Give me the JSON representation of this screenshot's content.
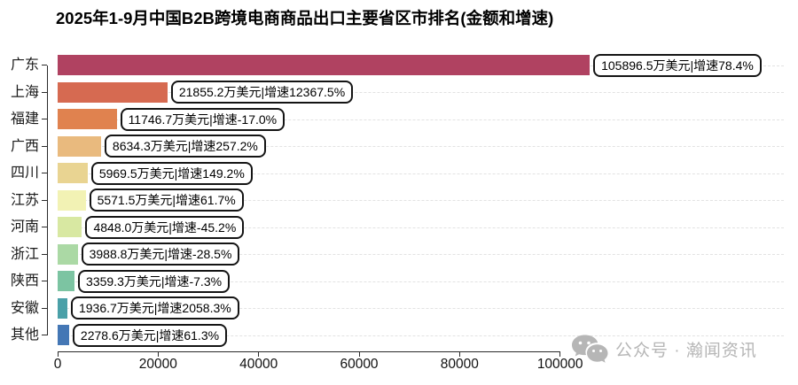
{
  "title": "2025年1-9月中国B2B跨境电商商品出口主要省区市排名(金额和增速)",
  "watermark": {
    "icon": "wechat-icon",
    "text": "公众号 · 瀚闻资讯"
  },
  "chart_data": {
    "type": "bar",
    "orientation": "horizontal",
    "title": "2025年1-9月中国B2B跨境电商商品出口主要省区市排名(金额和增速)",
    "categories": [
      "广东",
      "上海",
      "福建",
      "广西",
      "四川",
      "江苏",
      "河南",
      "浙江",
      "陕西",
      "安徽",
      "其他"
    ],
    "values": [
      105896.5,
      21855.2,
      11746.7,
      8634.3,
      5969.5,
      5571.5,
      4848.0,
      3988.8,
      3359.3,
      1936.7,
      2278.6
    ],
    "growth_pct": [
      78.4,
      12367.5,
      -17.0,
      257.2,
      149.2,
      61.7,
      -45.2,
      -28.5,
      -7.3,
      2058.3,
      61.3
    ],
    "bar_labels": [
      "105896.5万美元|增速78.4%",
      "21855.2万美元|增速12367.5%",
      "11746.7万美元|增速-17.0%",
      "8634.3万美元|增速257.2%",
      "5969.5万美元|增速149.2%",
      "5571.5万美元|增速61.7%",
      "4848.0万美元|增速-45.2%",
      "3988.8万美元|增速-28.5%",
      "3359.3万美元|增速-7.3%",
      "1936.7万美元|增速2058.3%",
      "2278.6万美元|增速61.3%"
    ],
    "bar_colors": [
      "#b04261",
      "#d66a51",
      "#e0824f",
      "#e9ba7e",
      "#e9d492",
      "#f2f2b4",
      "#d8e8a2",
      "#abd9a5",
      "#7cc4a2",
      "#4aa0a8",
      "#4477b5"
    ],
    "value_unit": "万美元",
    "x_axis": {
      "tick_values": [
        0,
        20000,
        40000,
        60000,
        80000,
        100000
      ],
      "tick_labels": [
        "0",
        "20000",
        "40000",
        "60000",
        "80000",
        "100000"
      ],
      "max": 100000
    },
    "grid": "dashed-horizontal",
    "legend": "none"
  }
}
